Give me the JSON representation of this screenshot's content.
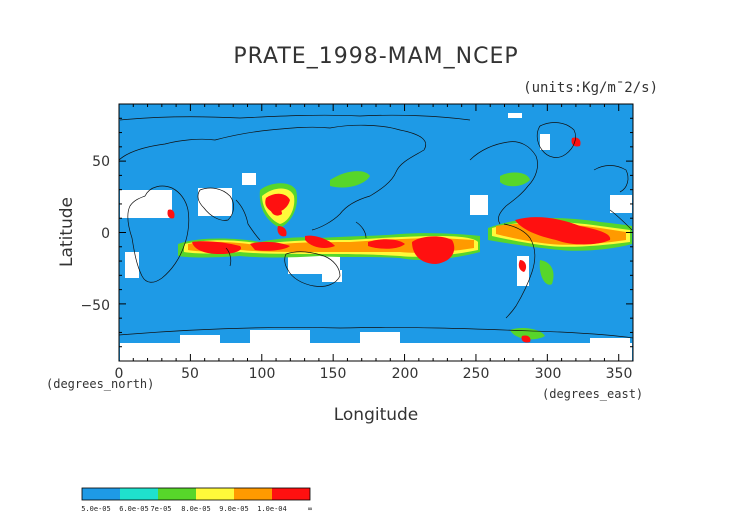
{
  "title": "PRATE_1998-MAM_NCEP",
  "units": "(units:Kg/m¯2/s)",
  "axes": {
    "xlabel": "Longitude",
    "ylabel": "Latitude",
    "x_unit": "(degrees_east)",
    "y_unit": "(degrees_north)",
    "xticks": [
      "0",
      "50",
      "100",
      "150",
      "200",
      "250",
      "300",
      "350"
    ],
    "yticks": [
      "50",
      "0",
      "−50"
    ]
  },
  "colors": {
    "background_rain": "#1e9ae6",
    "nodata": "#ffffff",
    "coast": "#101010"
  },
  "colorbar": {
    "colors": [
      "#1e9ae6",
      "#1fe1cd",
      "#57d62a",
      "#fff93a",
      "#ff9a00",
      "#ff1010"
    ],
    "labels": [
      "5.0e-05",
      "6.0e-05",
      "7e-05",
      "8.0e-05",
      "9.0e-05",
      "1.0e-04",
      "∞"
    ]
  },
  "chart_data": {
    "type": "heatmap",
    "title": "PRATE_1998-MAM_NCEP",
    "xlabel": "Longitude",
    "ylabel": "Latitude",
    "xlim": [
      0,
      360
    ],
    "ylim": [
      -90,
      90
    ],
    "xticks": [
      0,
      50,
      100,
      150,
      200,
      250,
      300,
      350
    ],
    "yticks": [
      -50,
      0,
      50
    ],
    "levels": [
      5e-05,
      6e-05,
      7e-05,
      8e-05,
      9e-05,
      0.0001
    ]
  }
}
